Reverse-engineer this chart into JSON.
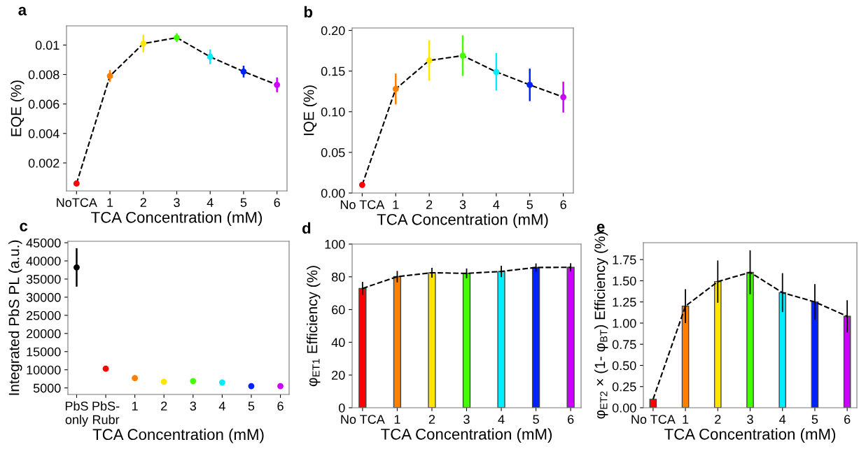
{
  "chart_data": [
    {
      "type": "line",
      "title": "a",
      "xlabel": "TCA Concentration (mM)",
      "ylabel": "EQE (%)",
      "categories": [
        "NoTCA",
        "1",
        "2",
        "3",
        "4",
        "5",
        "6"
      ],
      "ylim": [
        0.0001,
        0.0113
      ],
      "yticks": [
        {
          "value": 0.002,
          "label": "0.002"
        },
        {
          "value": 0.004,
          "label": "0.004"
        },
        {
          "value": 0.006,
          "label": "0.006"
        },
        {
          "value": 0.008,
          "label": "0.008"
        },
        {
          "value": 0.01,
          "label": "0.01"
        }
      ],
      "grid": false,
      "legend": false,
      "series": [
        {
          "color": "#000000",
          "line_style": "dashed",
          "marker": "none",
          "values": [
            0.0006,
            0.0079,
            0.0101,
            0.0105,
            0.0092,
            0.0082,
            0.0073
          ]
        },
        {
          "type": "scatter",
          "marker": "circle",
          "colors": [
            "#ff0000",
            "#ff8000",
            "#ffe600",
            "#44ff00",
            "#00eeff",
            "#0022ff",
            "#cc00ff"
          ],
          "values": [
            0.0006,
            0.0079,
            0.0101,
            0.0105,
            0.0092,
            0.0082,
            0.0073
          ],
          "errors": [
            null,
            0.0004,
            0.0006,
            0.0003,
            0.0005,
            0.0004,
            0.0005
          ]
        }
      ]
    },
    {
      "type": "line",
      "title": "b",
      "xlabel": "TCA Concentration (mM)",
      "ylabel": "IQE (%)",
      "categories": [
        "No TCA",
        "1",
        "2",
        "3",
        "4",
        "5",
        "6"
      ],
      "ylim": [
        0,
        0.203
      ],
      "yticks": [
        {
          "value": 0,
          "label": "0.00"
        },
        {
          "value": 0.05,
          "label": "0.05"
        },
        {
          "value": 0.1,
          "label": "0.10"
        },
        {
          "value": 0.15,
          "label": "0.15"
        },
        {
          "value": 0.2,
          "label": "0.20"
        }
      ],
      "grid": false,
      "legend": false,
      "series": [
        {
          "color": "#000000",
          "line_style": "dashed",
          "marker": "none",
          "values": [
            0.01,
            0.128,
            0.163,
            0.169,
            0.149,
            0.133,
            0.118
          ]
        },
        {
          "type": "scatter",
          "marker": "circle",
          "colors": [
            "#ff0000",
            "#ff8000",
            "#ffe600",
            "#44ff00",
            "#00eeff",
            "#0022ff",
            "#cc00ff"
          ],
          "values": [
            0.01,
            0.128,
            0.163,
            0.169,
            0.149,
            0.133,
            0.118
          ],
          "errors": [
            null,
            0.019,
            0.025,
            0.025,
            0.023,
            0.02,
            0.019
          ]
        }
      ]
    },
    {
      "type": "scatter",
      "title": "c",
      "xlabel": "TCA Concentration (mM)",
      "ylabel": "Integrated PbS PL (a.u.)",
      "categories": [
        "PbS\nonly",
        "PbS-\nRubr",
        "1",
        "2",
        "3",
        "4",
        "5",
        "6"
      ],
      "ylim": [
        3200,
        45400
      ],
      "yticks": [
        5000,
        10000,
        15000,
        20000,
        25000,
        30000,
        35000,
        40000,
        45000
      ],
      "grid": false,
      "legend": false,
      "series": [
        {
          "marker": "circle",
          "colors": [
            "#000000",
            "#ff0000",
            "#ff8000",
            "#ffe600",
            "#44ff00",
            "#00eeff",
            "#0022ff",
            "#cc00ff"
          ],
          "values": [
            38200,
            10300,
            7700,
            6700,
            6900,
            6500,
            5500,
            5500
          ],
          "errors": [
            5300,
            null,
            400,
            400,
            null,
            500,
            null,
            null
          ]
        }
      ]
    },
    {
      "type": "bar",
      "title": "d",
      "xlabel": "TCA Concentration (mM)",
      "ylabel": "φ$_{ET1}$ Efficiency (%)",
      "categories": [
        "No TCA",
        "1",
        "2",
        "3",
        "4",
        "5",
        "6"
      ],
      "ylim": [
        0,
        100
      ],
      "yticks": [
        0,
        20,
        40,
        60,
        80,
        100
      ],
      "grid": false,
      "legend": false,
      "series": [
        {
          "colors": [
            "#ff0000",
            "#ff8000",
            "#ffe600",
            "#44ff00",
            "#00eeff",
            "#0022ff",
            "#cc00ff"
          ],
          "values": [
            72.9,
            80.1,
            82.5,
            82.1,
            83.3,
            85.7,
            85.8
          ],
          "errors": [
            4,
            3.5,
            3,
            3,
            3.5,
            2.5,
            2.5
          ]
        },
        {
          "type": "line",
          "color": "#000000",
          "line_style": "dashed",
          "marker": "none",
          "values": [
            72.9,
            80.1,
            82.5,
            82.1,
            83.3,
            85.7,
            85.8
          ]
        }
      ]
    },
    {
      "type": "bar",
      "title": "e",
      "xlabel": "TCA Concentration (mM)",
      "ylabel": "φ$_{ET2}$ × (1- φ$_{BT}$) Efficiency (%)",
      "categories": [
        "No TCA",
        "1",
        "2",
        "3",
        "4",
        "5",
        "6"
      ],
      "ylim": [
        0,
        1.95
      ],
      "yticks": [
        {
          "value": 0,
          "label": "0.00"
        },
        {
          "value": 0.25,
          "label": "0.25"
        },
        {
          "value": 0.5,
          "label": "0.50"
        },
        {
          "value": 0.75,
          "label": "0.75"
        },
        {
          "value": 1.0,
          "label": "1.00"
        },
        {
          "value": 1.25,
          "label": "1.25"
        },
        {
          "value": 1.5,
          "label": "1.50"
        },
        {
          "value": 1.75,
          "label": "1.75"
        }
      ],
      "grid": false,
      "legend": false,
      "series": [
        {
          "colors": [
            "#ff0000",
            "#ff8000",
            "#ffe600",
            "#44ff00",
            "#00eeff",
            "#0022ff",
            "#cc00ff"
          ],
          "values": [
            0.1,
            1.2,
            1.49,
            1.6,
            1.36,
            1.25,
            1.08
          ],
          "errors": [
            null,
            0.2,
            0.25,
            0.26,
            0.23,
            0.21,
            0.19
          ]
        },
        {
          "type": "line",
          "color": "#000000",
          "line_style": "dashed",
          "marker": "none",
          "values": [
            0.1,
            1.2,
            1.49,
            1.6,
            1.36,
            1.25,
            1.08
          ]
        }
      ]
    }
  ]
}
